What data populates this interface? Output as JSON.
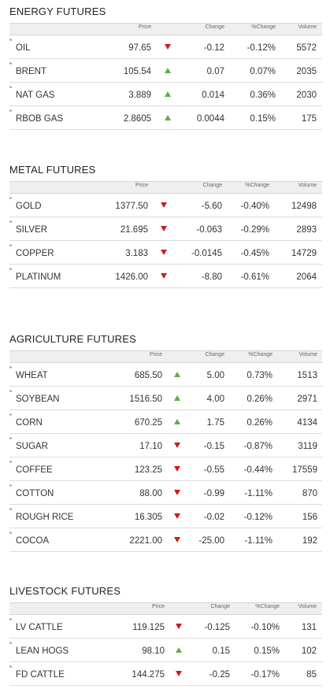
{
  "colors": {
    "down": "#cc1b1b",
    "up": "#5cae4a",
    "header_bg": "#efefef"
  },
  "sections": [
    {
      "title": "ENERGY FUTURES",
      "headers": {
        "price": "Price",
        "change": "Change",
        "pct": "%Change",
        "volume": "Volume"
      },
      "rows": [
        {
          "name": "OIL",
          "price": "97.65",
          "dir": "down",
          "change": "-0.12",
          "pct": "-0.12%",
          "volume": "5572"
        },
        {
          "name": "BRENT",
          "price": "105.54",
          "dir": "up",
          "change": "0.07",
          "pct": "0.07%",
          "volume": "2035"
        },
        {
          "name": "NAT GAS",
          "price": "3.889",
          "dir": "up",
          "change": "0.014",
          "pct": "0.36%",
          "volume": "2030"
        },
        {
          "name": "RBOB GAS",
          "price": "2.8605",
          "dir": "up",
          "change": "0.0044",
          "pct": "0.15%",
          "volume": "175"
        }
      ]
    },
    {
      "title": "METAL FUTURES",
      "headers": {
        "price": "Price",
        "change": "Change",
        "pct": "%Change",
        "volume": "Volume"
      },
      "rows": [
        {
          "name": "GOLD",
          "price": "1377.50",
          "dir": "down",
          "change": "-5.60",
          "pct": "-0.40%",
          "volume": "12498"
        },
        {
          "name": "SILVER",
          "price": "21.695",
          "dir": "down",
          "change": "-0.063",
          "pct": "-0.29%",
          "volume": "2893"
        },
        {
          "name": "COPPER",
          "price": "3.183",
          "dir": "down",
          "change": "-0.0145",
          "pct": "-0.45%",
          "volume": "14729"
        },
        {
          "name": "PLATINUM",
          "price": "1426.00",
          "dir": "down",
          "change": "-8.80",
          "pct": "-0.61%",
          "volume": "2064"
        }
      ]
    },
    {
      "title": "AGRICULTURE FUTURES",
      "headers": {
        "price": "Price",
        "change": "Change",
        "pct": "%Change",
        "volume": "Volume"
      },
      "rows": [
        {
          "name": "WHEAT",
          "price": "685.50",
          "dir": "up",
          "change": "5.00",
          "pct": "0.73%",
          "volume": "1513"
        },
        {
          "name": "SOYBEAN",
          "price": "1516.50",
          "dir": "up",
          "change": "4.00",
          "pct": "0.26%",
          "volume": "2971"
        },
        {
          "name": "CORN",
          "price": "670.25",
          "dir": "up",
          "change": "1.75",
          "pct": "0.26%",
          "volume": "4134"
        },
        {
          "name": "SUGAR",
          "price": "17.10",
          "dir": "down",
          "change": "-0.15",
          "pct": "-0.87%",
          "volume": "3119"
        },
        {
          "name": "COFFEE",
          "price": "123.25",
          "dir": "down",
          "change": "-0.55",
          "pct": "-0.44%",
          "volume": "17559"
        },
        {
          "name": "COTTON",
          "price": "88.00",
          "dir": "down",
          "change": "-0.99",
          "pct": "-1.11%",
          "volume": "870"
        },
        {
          "name": "ROUGH RICE",
          "price": "16.305",
          "dir": "down",
          "change": "-0.02",
          "pct": "-0.12%",
          "volume": "156"
        },
        {
          "name": "COCOA",
          "price": "2221.00",
          "dir": "down",
          "change": "-25.00",
          "pct": "-1.11%",
          "volume": "192"
        }
      ]
    },
    {
      "title": "LIVESTOCK FUTURES",
      "headers": {
        "price": "Price",
        "change": "Change",
        "pct": "%Change",
        "volume": "Volume"
      },
      "rows": [
        {
          "name": "LV CATTLE",
          "price": "119.125",
          "dir": "down",
          "change": "-0.125",
          "pct": "-0.10%",
          "volume": "131"
        },
        {
          "name": "LEAN HOGS",
          "price": "98.10",
          "dir": "up",
          "change": "0.15",
          "pct": "0.15%",
          "volume": "102"
        },
        {
          "name": "FD CATTLE",
          "price": "144.275",
          "dir": "down",
          "change": "-0.25",
          "pct": "-0.17%",
          "volume": "85"
        }
      ]
    }
  ],
  "star": "*"
}
